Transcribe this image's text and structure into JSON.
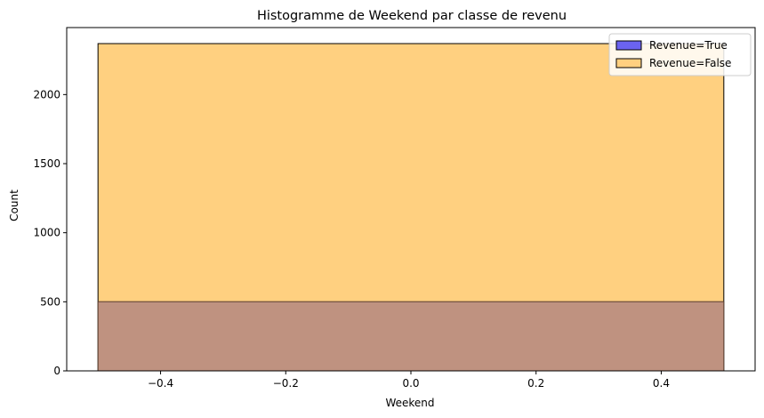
{
  "chart_data": {
    "type": "bar",
    "title": "Histogramme de Weekend par classe de revenu",
    "xlabel": "Weekend",
    "ylabel": "Count",
    "xlim": [
      -0.55,
      0.55
    ],
    "ylim": [
      0,
      2485
    ],
    "xticks": [
      -0.4,
      -0.2,
      0.0,
      0.2,
      0.4
    ],
    "xtick_labels": [
      "−0.4",
      "−0.2",
      "0.0",
      "0.2",
      "0.4"
    ],
    "yticks": [
      0,
      500,
      1000,
      1500,
      2000
    ],
    "ytick_labels": [
      "0",
      "500",
      "1000",
      "1500",
      "2000"
    ],
    "grid": false,
    "legend_position": "top-right",
    "series": [
      {
        "name": "Revenue=True",
        "color": "#6b63f0",
        "bins": [
          {
            "x0": -0.5,
            "x1": 0.5,
            "count": 501
          }
        ]
      },
      {
        "name": "Revenue=False",
        "color": "#ffd080",
        "bins": [
          {
            "x0": -0.5,
            "x1": 0.5,
            "count": 2369
          }
        ]
      }
    ],
    "overlap_color": "#bf9280"
  }
}
